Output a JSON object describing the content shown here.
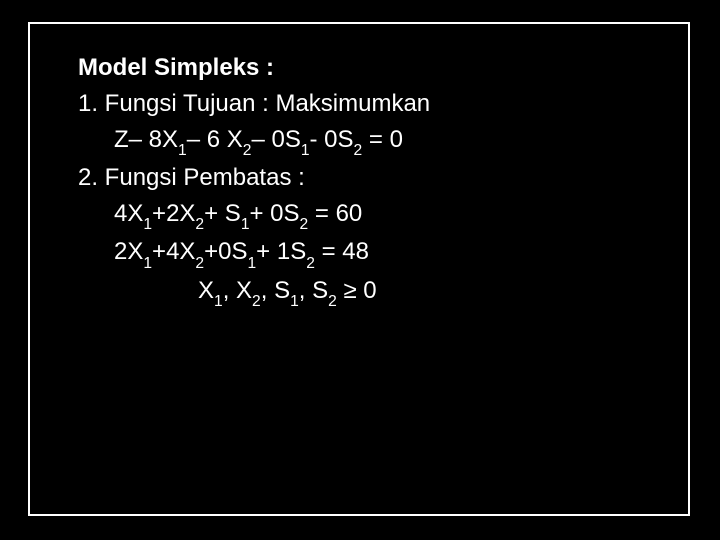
{
  "slide": {
    "background_color": "#000000",
    "text_color": "#ffffff",
    "border_color": "#ffffff",
    "font_family": "Arial",
    "title_fontsize": 24,
    "body_fontsize": 24,
    "title": "Model Simpleks :",
    "l1": "1. Fungsi Tujuan : Maksimumkan",
    "l2_a": "Z– 8X",
    "l2_b": "– 6 X",
    "l2_c": "– 0S",
    "l2_d": "- 0S",
    "l2_e": " = 0",
    "l3": "2. Fungsi Pembatas :",
    "l4_a": "4X",
    "l4_b": "+2X",
    "l4_c": "+  S",
    "l4_d": "+ 0S",
    "l4_e": " = 60",
    "l5_a": "2X",
    "l5_b": "+4X",
    "l5_c": "+0S",
    "l5_d": "+ 1S",
    "l5_e": " = 48",
    "l6_a": "X",
    "l6_b": ", X",
    "l6_c": ", S",
    "l6_d": ", S",
    "l6_e": " ≥ 0",
    "s1": "1",
    "s2": "2"
  }
}
